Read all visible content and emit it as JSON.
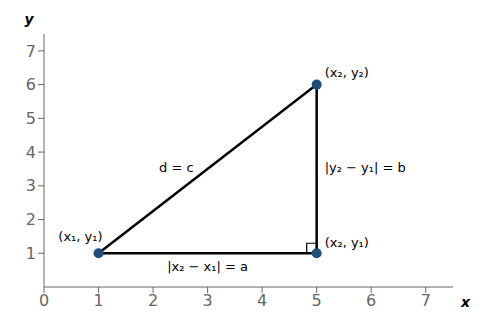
{
  "chart_data": {
    "type": "scatter",
    "xlabel": "x",
    "ylabel": "y",
    "xlim": [
      0,
      7.5
    ],
    "ylim": [
      0,
      7.5
    ],
    "xticks": [
      0,
      1,
      2,
      3,
      4,
      5,
      6,
      7
    ],
    "yticks": [
      1,
      2,
      3,
      4,
      5,
      6,
      7
    ],
    "grid": false,
    "series": [
      {
        "type": "line",
        "color": "#000000",
        "x": [
          1,
          5,
          5,
          1
        ],
        "values": [
          1,
          1,
          6,
          1
        ]
      },
      {
        "type": "scatter",
        "color": "#1f4e79",
        "x": [
          1,
          5,
          5
        ],
        "values": [
          1,
          6,
          1
        ]
      }
    ],
    "annotations": [
      {
        "text": "(x₁, y₁)",
        "x": 1,
        "y": 1
      },
      {
        "text": "(x₂, y₂)",
        "x": 5,
        "y": 6
      },
      {
        "text": "(x₂, y₁)",
        "x": 5,
        "y": 1
      },
      {
        "text": "d = c",
        "x": 3,
        "y": 3.5
      },
      {
        "text": "|x₂ − x₁| = a",
        "x": 3,
        "y": 1
      },
      {
        "text": "|y₂ − y₁| = b",
        "x": 5,
        "y": 3.5
      }
    ]
  }
}
